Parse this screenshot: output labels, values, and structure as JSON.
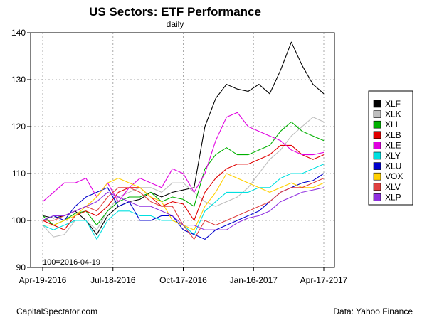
{
  "chart_data": {
    "type": "line",
    "title": "US Sectors: ETF Performance",
    "subtitle": "daily",
    "base_note": "100=2016-04-19",
    "xlabel": "",
    "ylabel": "",
    "x_ticks": [
      "Apr-19-2016",
      "Jul-18-2016",
      "Oct-17-2016",
      "Jan-16-2017",
      "Apr-17-2017"
    ],
    "y_ticks": [
      90,
      100,
      110,
      120,
      130,
      140
    ],
    "ylim": [
      90,
      140
    ],
    "grid": true,
    "legend_position": "right",
    "x_dates": [
      "2016-04-19",
      "2016-05-03",
      "2016-05-17",
      "2016-05-31",
      "2016-06-14",
      "2016-06-28",
      "2016-07-12",
      "2016-07-26",
      "2016-08-09",
      "2016-08-23",
      "2016-09-06",
      "2016-09-20",
      "2016-10-04",
      "2016-10-18",
      "2016-11-01",
      "2016-11-15",
      "2016-11-29",
      "2016-12-13",
      "2016-12-27",
      "2017-01-10",
      "2017-01-24",
      "2017-02-07",
      "2017-02-21",
      "2017-03-07",
      "2017-03-21",
      "2017-04-04",
      "2017-04-17"
    ],
    "series": [
      {
        "name": "XLF",
        "color": "#000000",
        "values": [
          101,
          100.5,
          101,
          102,
          100,
          97,
          101,
          103,
          104,
          104.5,
          106,
          105,
          106,
          106.5,
          107,
          120,
          126,
          129,
          128,
          127.5,
          129,
          127,
          132,
          138,
          133,
          129,
          127
        ]
      },
      {
        "name": "XLK",
        "color": "#bebebe",
        "values": [
          99,
          96.5,
          97,
          100,
          100,
          98,
          102,
          105,
          106,
          107,
          107,
          106,
          108,
          108,
          106,
          104,
          103,
          104,
          105,
          107,
          110,
          113,
          115,
          118,
          120,
          122,
          121
        ]
      },
      {
        "name": "XLI",
        "color": "#00b000",
        "values": [
          101,
          99,
          100,
          101.5,
          102,
          99,
          102,
          104,
          105,
          105,
          106,
          104,
          105,
          104.5,
          103,
          111,
          114,
          115.5,
          114,
          114,
          115,
          116,
          119,
          121,
          119,
          118,
          117
        ]
      },
      {
        "name": "XLB",
        "color": "#e00000",
        "values": [
          100,
          99,
          98,
          101,
          102,
          101,
          103,
          106,
          107,
          107,
          105,
          103,
          104,
          103.5,
          100,
          106,
          109,
          111,
          112,
          112,
          113,
          114,
          116,
          116,
          114,
          113,
          114
        ]
      },
      {
        "name": "XLE",
        "color": "#e000e0",
        "values": [
          104,
          106,
          108,
          108,
          109,
          105,
          108,
          104,
          107,
          109,
          108,
          107,
          111,
          110,
          106,
          110,
          117,
          122,
          123,
          120,
          119,
          118,
          117,
          115,
          114,
          114,
          114.5
        ]
      },
      {
        "name": "XLY",
        "color": "#00e0e0",
        "values": [
          99,
          98,
          99,
          100,
          100,
          96,
          100,
          102,
          102,
          101,
          101,
          100,
          100,
          99,
          97,
          102,
          104,
          106,
          106,
          106,
          107,
          107,
          109,
          110,
          110,
          111,
          112
        ]
      },
      {
        "name": "XLU",
        "color": "#0000cc",
        "values": [
          100,
          101,
          100,
          103,
          105,
          106,
          107,
          103,
          104,
          100,
          100,
          101,
          101,
          98,
          97,
          96,
          98,
          99,
          100,
          101,
          102,
          104,
          106,
          107,
          108,
          108.5,
          110
        ]
      },
      {
        "name": "VOX",
        "color": "#ffd000",
        "values": [
          99,
          99,
          100,
          101,
          103,
          105,
          108,
          109,
          108,
          107,
          105,
          104,
          100,
          99,
          98,
          103,
          106,
          110,
          109,
          108,
          107,
          106,
          107,
          108,
          107,
          107,
          108
        ]
      },
      {
        "name": "XLV",
        "color": "#e04040",
        "values": [
          100,
          100,
          101,
          102,
          103,
          102,
          105,
          107,
          107,
          106,
          104,
          103,
          103,
          99,
          96,
          100,
          99,
          100,
          101,
          102,
          103,
          104,
          106,
          107,
          107,
          108,
          109
        ]
      },
      {
        "name": "XLP",
        "color": "#9030e0",
        "values": [
          100,
          101,
          101,
          102,
          103,
          104,
          106,
          105,
          104,
          103,
          103,
          102,
          101,
          99,
          99,
          98,
          98,
          98,
          99.5,
          100.5,
          101,
          102,
          104,
          105,
          106,
          106.5,
          107
        ]
      }
    ]
  },
  "footer": {
    "left": "CapitalSpectator.com",
    "right": "Data: Yahoo Finance"
  }
}
